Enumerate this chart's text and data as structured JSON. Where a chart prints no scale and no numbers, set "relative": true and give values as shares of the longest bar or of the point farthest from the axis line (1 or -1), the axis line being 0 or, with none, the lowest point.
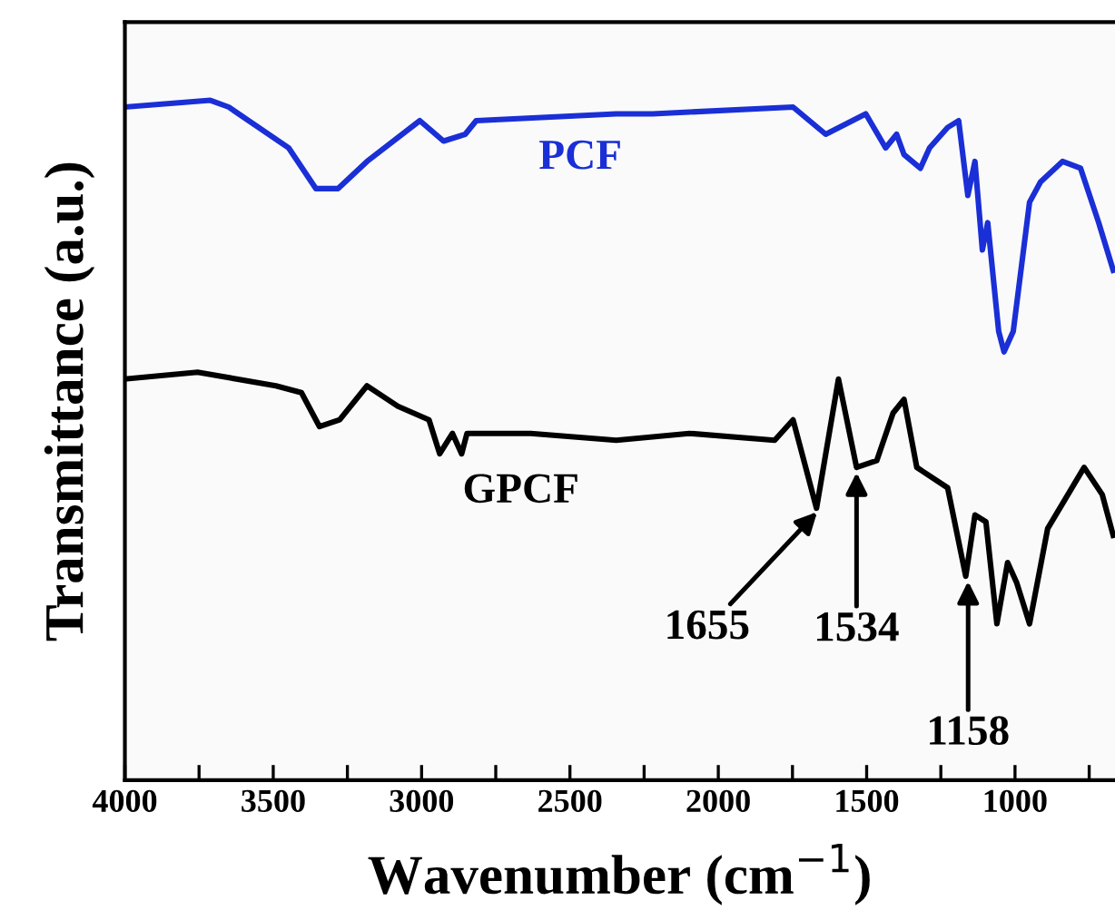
{
  "chart_data": {
    "type": "line",
    "relative": true,
    "xlabel": "Wavenumber (cm$^{−1}$)",
    "ylabel": "Transmittance (a.u.)",
    "xlim": [
      4000,
      663
    ],
    "xticks": [
      4000,
      {
        "value": 3750,
        "label": null
      },
      3500,
      {
        "value": 3250,
        "label": null
      },
      3000,
      {
        "value": 2750,
        "label": null
      },
      2500,
      {
        "value": 2250,
        "label": null
      },
      2000,
      {
        "value": 1750,
        "label": null
      },
      1500,
      {
        "value": 1250,
        "label": null
      },
      1000,
      {
        "value": 750,
        "label": null
      }
    ],
    "grid": false,
    "legend": false,
    "marker": "none",
    "line_style": "solid",
    "series": [
      {
        "name": "PCF",
        "color": "#1a2fd6",
        "x": [
          4000,
          3712,
          3650,
          3448,
          3356,
          3282,
          3184,
          3006,
          2926,
          2853,
          2816,
          2344,
          2221,
          1748,
          1638,
          1503,
          1436,
          1399,
          1374,
          1319,
          1288,
          1227,
          1190,
          1159,
          1135,
          1110,
          1092,
          1055,
          1037,
          1006,
          951,
          914,
          840,
          779,
          718,
          669
        ],
        "values": [
          0.99,
          1.0,
          0.99,
          0.93,
          0.87,
          0.87,
          0.91,
          0.97,
          0.94,
          0.95,
          0.97,
          0.98,
          0.98,
          0.99,
          0.95,
          0.98,
          0.93,
          0.95,
          0.92,
          0.9,
          0.93,
          0.96,
          0.97,
          0.86,
          0.91,
          0.78,
          0.82,
          0.66,
          0.63,
          0.66,
          0.85,
          0.88,
          0.91,
          0.9,
          0.82,
          0.75
        ]
      },
      {
        "name": "GPCF",
        "color": "#000000",
        "x": [
          4000,
          3755,
          3491,
          3405,
          3344,
          3276,
          3184,
          3080,
          2975,
          2939,
          2896,
          2865,
          2847,
          2632,
          2344,
          2098,
          1810,
          1748,
          1669,
          1595,
          1534,
          1466,
          1411,
          1374,
          1331,
          1227,
          1166,
          1135,
          1098,
          1061,
          1025,
          994,
          951,
          890,
          767,
          706,
          669
        ],
        "values": [
          0.59,
          0.6,
          0.58,
          0.57,
          0.52,
          0.53,
          0.58,
          0.55,
          0.53,
          0.48,
          0.51,
          0.48,
          0.51,
          0.51,
          0.5,
          0.51,
          0.5,
          0.53,
          0.4,
          0.59,
          0.46,
          0.47,
          0.54,
          0.56,
          0.46,
          0.43,
          0.3,
          0.39,
          0.38,
          0.23,
          0.32,
          0.29,
          0.23,
          0.37,
          0.46,
          0.42,
          0.36
        ]
      }
    ],
    "annotations": [
      {
        "text": "1655",
        "x": 1655,
        "y": 0.4
      },
      {
        "text": "1534",
        "x": 1534,
        "y": 0.46
      },
      {
        "text": "1158",
        "x": 1158,
        "y": 0.3
      }
    ]
  }
}
